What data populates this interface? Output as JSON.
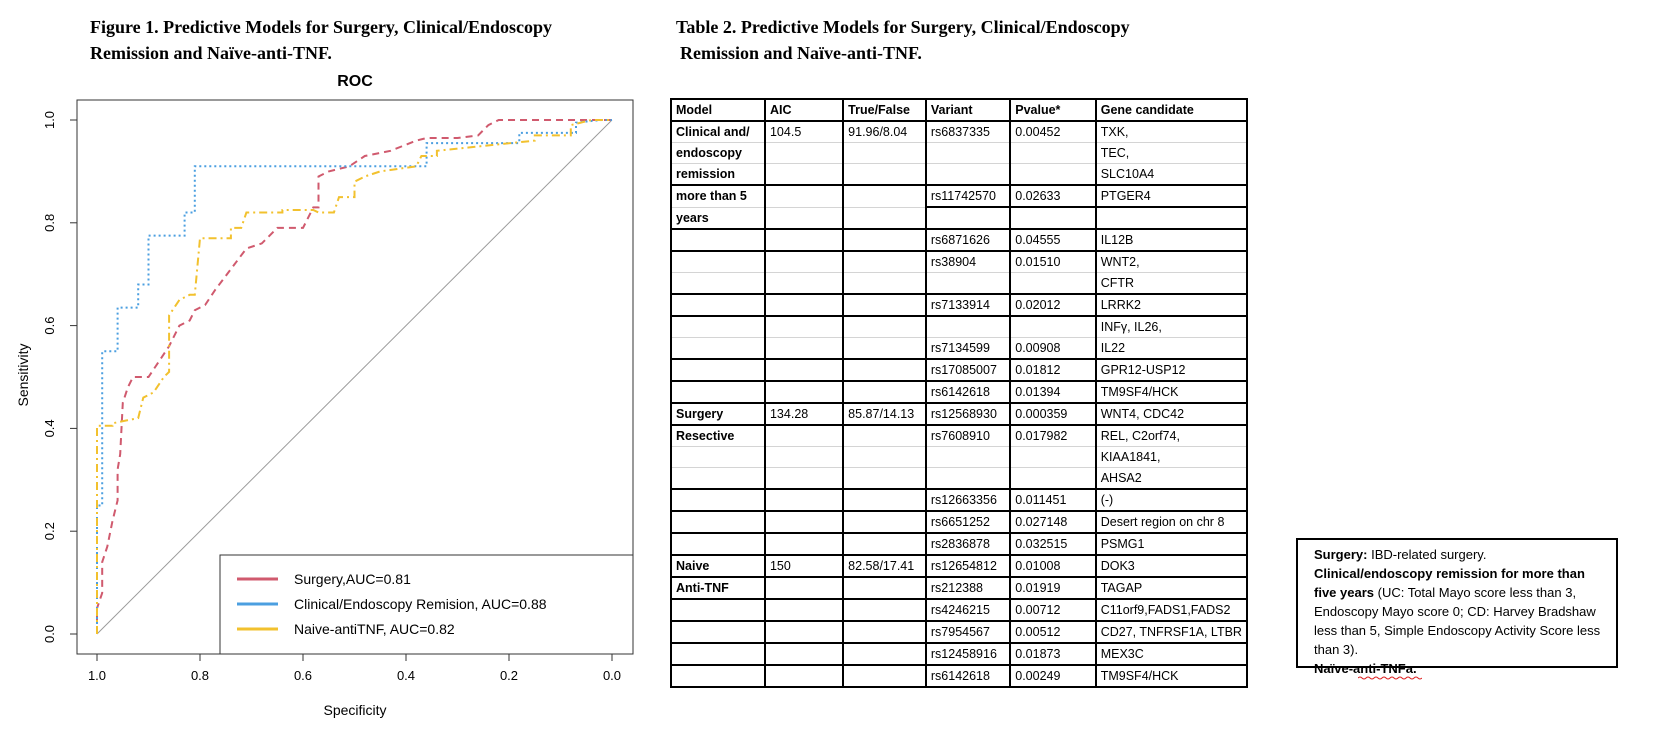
{
  "figure": {
    "caption_line1": "Figure 1. Predictive Models for Surgery, Clinical/Endoscopy",
    "caption_line2": "Remission and Naïve-anti-TNF."
  },
  "chart_data": {
    "type": "line",
    "title": "ROC",
    "xlabel": "Specificity",
    "ylabel": "Sensitivity",
    "x_reversed": true,
    "xlim": [
      1.0,
      0.0
    ],
    "ylim": [
      0.0,
      1.0
    ],
    "x_ticks": [
      "1.0",
      "0.8",
      "0.6",
      "0.4",
      "0.2",
      "0.0"
    ],
    "y_ticks": [
      "0.0",
      "0.2",
      "0.4",
      "0.6",
      "0.8",
      "1.0"
    ],
    "grid": false,
    "diagonal_reference": true,
    "legend_position": "bottom-right",
    "series": [
      {
        "name": "Surgery,AUC=0.81",
        "color": "#d05a6e",
        "style": "dashed",
        "points": [
          [
            1.0,
            0.0
          ],
          [
            1.0,
            0.05
          ],
          [
            0.99,
            0.08
          ],
          [
            0.99,
            0.14
          ],
          [
            0.98,
            0.17
          ],
          [
            0.97,
            0.22
          ],
          [
            0.96,
            0.26
          ],
          [
            0.96,
            0.32
          ],
          [
            0.955,
            0.35
          ],
          [
            0.95,
            0.45
          ],
          [
            0.94,
            0.48
          ],
          [
            0.93,
            0.5
          ],
          [
            0.9,
            0.5
          ],
          [
            0.88,
            0.53
          ],
          [
            0.86,
            0.56
          ],
          [
            0.84,
            0.6
          ],
          [
            0.82,
            0.61
          ],
          [
            0.81,
            0.63
          ],
          [
            0.79,
            0.64
          ],
          [
            0.77,
            0.67
          ],
          [
            0.74,
            0.71
          ],
          [
            0.71,
            0.75
          ],
          [
            0.68,
            0.76
          ],
          [
            0.65,
            0.79
          ],
          [
            0.6,
            0.79
          ],
          [
            0.58,
            0.83
          ],
          [
            0.57,
            0.83
          ],
          [
            0.57,
            0.89
          ],
          [
            0.55,
            0.9
          ],
          [
            0.51,
            0.91
          ],
          [
            0.48,
            0.93
          ],
          [
            0.43,
            0.94
          ],
          [
            0.38,
            0.96
          ],
          [
            0.36,
            0.965
          ],
          [
            0.3,
            0.965
          ],
          [
            0.26,
            0.97
          ],
          [
            0.24,
            0.99
          ],
          [
            0.22,
            1.0
          ],
          [
            0.0,
            1.0
          ]
        ]
      },
      {
        "name": "Clinical/Endoscopy Remision, AUC=0.88",
        "color": "#4b9fe0",
        "style": "dotted",
        "points": [
          [
            1.0,
            0.0
          ],
          [
            1.0,
            0.25
          ],
          [
            0.99,
            0.25
          ],
          [
            0.99,
            0.55
          ],
          [
            0.96,
            0.55
          ],
          [
            0.96,
            0.635
          ],
          [
            0.92,
            0.635
          ],
          [
            0.92,
            0.68
          ],
          [
            0.9,
            0.68
          ],
          [
            0.9,
            0.775
          ],
          [
            0.83,
            0.775
          ],
          [
            0.83,
            0.82
          ],
          [
            0.81,
            0.82
          ],
          [
            0.81,
            0.91
          ],
          [
            0.36,
            0.91
          ],
          [
            0.36,
            0.955
          ],
          [
            0.18,
            0.955
          ],
          [
            0.18,
            0.975
          ],
          [
            0.07,
            0.975
          ],
          [
            0.07,
            0.995
          ],
          [
            0.02,
            1.0
          ],
          [
            0.0,
            1.0
          ]
        ]
      },
      {
        "name": "Naive-antiTNF, AUC=0.82",
        "color": "#f2c12e",
        "style": "dashdot",
        "points": [
          [
            1.0,
            0.0
          ],
          [
            1.0,
            0.405
          ],
          [
            0.97,
            0.405
          ],
          [
            0.97,
            0.41
          ],
          [
            0.92,
            0.42
          ],
          [
            0.91,
            0.46
          ],
          [
            0.89,
            0.47
          ],
          [
            0.87,
            0.5
          ],
          [
            0.86,
            0.51
          ],
          [
            0.86,
            0.62
          ],
          [
            0.84,
            0.65
          ],
          [
            0.82,
            0.66
          ],
          [
            0.81,
            0.66
          ],
          [
            0.8,
            0.77
          ],
          [
            0.74,
            0.77
          ],
          [
            0.74,
            0.79
          ],
          [
            0.72,
            0.79
          ],
          [
            0.71,
            0.82
          ],
          [
            0.64,
            0.82
          ],
          [
            0.64,
            0.825
          ],
          [
            0.58,
            0.825
          ],
          [
            0.57,
            0.82
          ],
          [
            0.54,
            0.82
          ],
          [
            0.53,
            0.85
          ],
          [
            0.5,
            0.85
          ],
          [
            0.5,
            0.88
          ],
          [
            0.48,
            0.89
          ],
          [
            0.45,
            0.9
          ],
          [
            0.38,
            0.91
          ],
          [
            0.37,
            0.93
          ],
          [
            0.34,
            0.93
          ],
          [
            0.34,
            0.94
          ],
          [
            0.15,
            0.96
          ],
          [
            0.15,
            0.97
          ],
          [
            0.08,
            0.97
          ],
          [
            0.08,
            0.99
          ],
          [
            0.04,
            1.0
          ],
          [
            0.0,
            1.0
          ]
        ]
      }
    ]
  },
  "table": {
    "caption_line1": "Table 2. Predictive Models for Surgery, Clinical/Endoscopy",
    "caption_line2": "Remission and Naïve-anti-TNF.",
    "headers": [
      "Model",
      "AIC",
      "True/False",
      "Variant",
      "Pvalue*",
      "Gene candidate"
    ],
    "rows": [
      [
        "Clinical and/",
        "104.5",
        "91.96/8.04",
        "rs6837335",
        "0.00452",
        "TXK,"
      ],
      [
        "endoscopy",
        "",
        "",
        "",
        "",
        "TEC,"
      ],
      [
        "remission",
        "",
        "",
        "",
        "",
        "SLC10A4"
      ],
      [
        "more than 5",
        "",
        "",
        "rs11742570",
        "0.02633",
        " PTGER4"
      ],
      [
        "years",
        "",
        "",
        "",
        "",
        ""
      ],
      [
        "",
        "",
        "",
        "rs6871626",
        "0.04555",
        "IL12B"
      ],
      [
        "",
        "",
        "",
        "rs38904",
        "0.01510",
        " WNT2,"
      ],
      [
        "",
        "",
        "",
        "",
        "",
        "CFTR"
      ],
      [
        "",
        "",
        "",
        "rs7133914",
        "0.02012",
        "LRRK2"
      ],
      [
        "",
        "",
        "",
        "",
        "",
        "INFγ, IL26,"
      ],
      [
        "",
        "",
        "",
        "rs7134599",
        "0.00908",
        " IL22"
      ],
      [
        "",
        "",
        "",
        "rs17085007",
        "0.01812",
        "GPR12-USP12"
      ],
      [
        "",
        "",
        "",
        "rs6142618",
        "0.01394",
        "TM9SF4/HCK"
      ],
      [
        "Surgery",
        "134.28",
        " 85.87/14.13",
        "rs12568930",
        "0.000359",
        "WNT4, CDC42"
      ],
      [
        "Resective",
        "",
        "",
        "rs7608910",
        "0.017982",
        "REL, C2orf74,"
      ],
      [
        "",
        "",
        "",
        "",
        "",
        "KIAA1841,"
      ],
      [
        "",
        "",
        "",
        "",
        "",
        "AHSA2"
      ],
      [
        "",
        "",
        "",
        "rs12663356",
        "0.011451",
        "(-)"
      ],
      [
        "",
        "",
        "",
        "rs6651252",
        "0.027148",
        " Desert region on chr 8"
      ],
      [
        "",
        "",
        "",
        "rs2836878",
        "0.032515",
        "PSMG1"
      ],
      [
        "Naive",
        "150",
        "82.58/17.41",
        "rs12654812",
        "0.01008",
        "DOK3"
      ],
      [
        " Anti-TNF",
        "",
        "",
        "rs212388",
        "0.01919",
        "TAGAP"
      ],
      [
        "",
        "",
        "",
        "rs4246215",
        "0.00712",
        "C11orf9,FADS1,FADS2"
      ],
      [
        "",
        "",
        "",
        "rs7954567",
        "0.00512",
        "CD27, TNFRSF1A, LTBR"
      ],
      [
        "",
        "",
        "",
        "rs12458916",
        "0.01873",
        "MEX3C"
      ],
      [
        "",
        "",
        "",
        "rs6142618",
        "0.00249",
        "TM9SF4/HCK"
      ]
    ]
  },
  "footnote": {
    "surgery_label": "Surgery:",
    "surgery_text": " IBD-related surgery.",
    "remission_label": "Clinical/endoscopy remission for more than five years",
    "remission_text": " (UC: Total Mayo score less than 3, Endoscopy Mayo score 0; CD: Harvey Bradshaw less than 5, Simple Endoscopy Activity Score less than 3).",
    "naive_label": "Naïve-anti-TNFa."
  }
}
